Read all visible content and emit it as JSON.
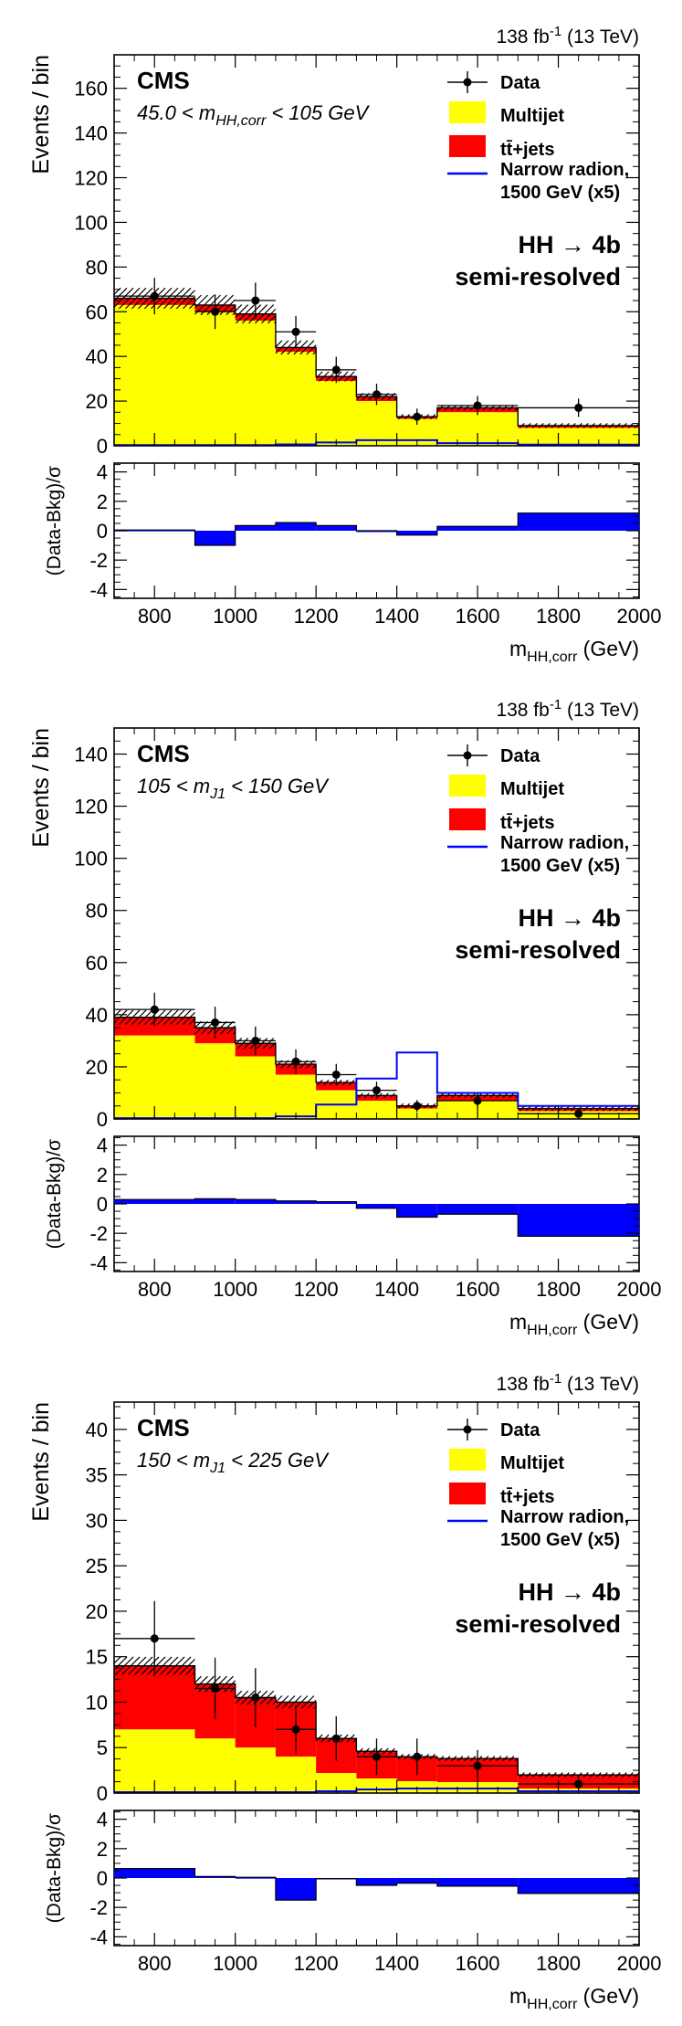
{
  "chart_data": [
    {
      "type": "bar",
      "lumi": "138 fb",
      "lumi_sup": "-1",
      "energy": " (13 TeV)",
      "cms": "CMS",
      "selection": "45.0 < m",
      "selection_sub": "HH,corr",
      "selection_end": " < 105 GeV",
      "process": "HH → 4b",
      "category": "semi-resolved",
      "ylabel": "Events / bin",
      "ratio_ylabel": "(Data-Bkg)/σ",
      "xlabel": "m",
      "xlabel_sub": "HH,corr",
      "xlabel_unit": " (GeV)",
      "legend": {
        "data": "Data",
        "multijet": "Multijet",
        "ttbar": "tt̄+jets",
        "signal_1": "Narrow radion,",
        "signal_2": "1500 GeV (x5)"
      },
      "colors": {
        "multijet": "#ffff00",
        "ttbar": "#ff0000",
        "signal": "#0000ff",
        "ratio": "#0000ff"
      },
      "xlim": [
        700,
        2000
      ],
      "ylim": [
        0,
        175
      ],
      "ymajor": 20,
      "ratio_ylim": [
        -4.6,
        4.6
      ],
      "bin_edges": [
        700,
        900,
        1000,
        1100,
        1200,
        1300,
        1400,
        1500,
        1700,
        2000
      ],
      "multijet": [
        63,
        60,
        56,
        42,
        29,
        20,
        12,
        15,
        8
      ],
      "ttbar": [
        3,
        3,
        3,
        2,
        2,
        2,
        1,
        2,
        1
      ],
      "signal": [
        0.3,
        0.3,
        0.3,
        0.6,
        1.5,
        2.5,
        2.5,
        1.2,
        0.5
      ],
      "data_x": [
        800,
        950,
        1050,
        1150,
        1250,
        1350,
        1450,
        1600,
        1850
      ],
      "data_y": [
        67,
        60,
        65,
        51,
        34,
        23,
        13,
        18,
        17
      ],
      "ratio": [
        0.05,
        -1.0,
        0.35,
        0.55,
        0.35,
        0.0,
        -0.3,
        0.3,
        1.2
      ]
    },
    {
      "type": "bar",
      "lumi": "138 fb",
      "lumi_sup": "-1",
      "energy": " (13 TeV)",
      "cms": "CMS",
      "selection": "105 < m",
      "selection_sub": "J1",
      "selection_end": " < 150 GeV",
      "process": "HH → 4b",
      "category": "semi-resolved",
      "ylabel": "Events / bin",
      "ratio_ylabel": "(Data-Bkg)/σ",
      "xlabel": "m",
      "xlabel_sub": "HH,corr",
      "xlabel_unit": " (GeV)",
      "legend": {
        "data": "Data",
        "multijet": "Multijet",
        "ttbar": "tt̄+jets",
        "signal_1": "Narrow radion,",
        "signal_2": "1500 GeV (x5)"
      },
      "colors": {
        "multijet": "#ffff00",
        "ttbar": "#ff0000",
        "signal": "#0000ff",
        "ratio": "#0000ff"
      },
      "xlim": [
        700,
        2000
      ],
      "ylim": [
        0,
        150
      ],
      "ymajor": 20,
      "ratio_ylim": [
        -4.6,
        4.6
      ],
      "bin_edges": [
        700,
        900,
        1000,
        1100,
        1200,
        1300,
        1400,
        1500,
        1700,
        2000
      ],
      "multijet": [
        32,
        29,
        24,
        17,
        11,
        7,
        4,
        7,
        3
      ],
      "ttbar": [
        7,
        6,
        5,
        4,
        3,
        2,
        1,
        2,
        1
      ],
      "signal": [
        0.3,
        0.3,
        0.3,
        1.0,
        5.5,
        15.5,
        25.5,
        10.0,
        5.0
      ],
      "data_x": [
        800,
        950,
        1050,
        1150,
        1250,
        1350,
        1450,
        1600,
        1850
      ],
      "data_y": [
        42,
        37,
        30,
        22,
        17,
        11,
        5,
        7,
        2
      ],
      "ratio": [
        0.3,
        0.35,
        0.3,
        0.2,
        0.15,
        -0.3,
        -0.9,
        -0.7,
        -2.2
      ]
    },
    {
      "type": "bar",
      "lumi": "138 fb",
      "lumi_sup": "-1",
      "energy": " (13 TeV)",
      "cms": "CMS",
      "selection": "150 < m",
      "selection_sub": "J1",
      "selection_end": " < 225 GeV",
      "process": "HH → 4b",
      "category": "semi-resolved",
      "ylabel": "Events / bin",
      "ratio_ylabel": "(Data-Bkg)/σ",
      "xlabel": "m",
      "xlabel_sub": "HH,corr",
      "xlabel_unit": " (GeV)",
      "legend": {
        "data": "Data",
        "multijet": "Multijet",
        "ttbar": "tt̄+jets",
        "signal_1": "Narrow radion,",
        "signal_2": "1500 GeV (x5)"
      },
      "colors": {
        "multijet": "#ffff00",
        "ttbar": "#ff0000",
        "signal": "#0000ff",
        "ratio": "#0000ff"
      },
      "xlim": [
        700,
        2000
      ],
      "ylim": [
        0,
        43
      ],
      "ymajor": 5,
      "ratio_ylim": [
        -4.6,
        4.6
      ],
      "bin_edges": [
        700,
        900,
        1000,
        1100,
        1200,
        1300,
        1400,
        1500,
        1700,
        2000
      ],
      "multijet": [
        7,
        6,
        5,
        4,
        2.2,
        1.6,
        1.3,
        1.2,
        0.5
      ],
      "ttbar": [
        7,
        6,
        5.5,
        6,
        3.8,
        3.0,
        2.7,
        2.6,
        1.5
      ],
      "signal": [
        0.1,
        0.1,
        0.1,
        0.1,
        0.2,
        0.4,
        0.5,
        0.5,
        0.2
      ],
      "data_x": [
        800,
        950,
        1050,
        1150,
        1250,
        1350,
        1450,
        1600,
        1850
      ],
      "data_y": [
        17,
        11.5,
        10.5,
        7,
        6,
        4,
        4,
        3,
        1
      ],
      "ratio": [
        0.65,
        0.1,
        0.05,
        -1.5,
        -0.05,
        -0.5,
        -0.35,
        -0.55,
        -1.05
      ]
    }
  ]
}
